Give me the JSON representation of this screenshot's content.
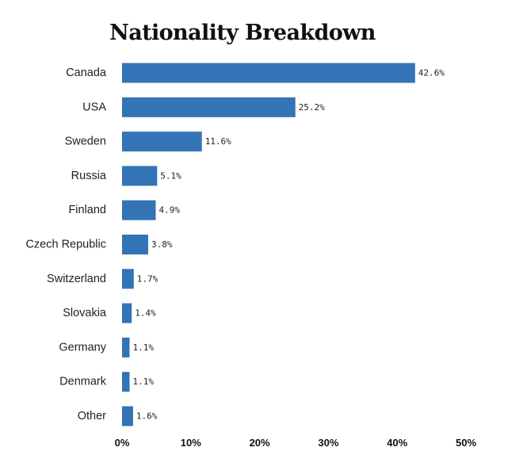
{
  "chart_data": {
    "type": "bar",
    "orientation": "horizontal",
    "title": "Nationality Breakdown",
    "xlabel": "",
    "ylabel": "",
    "xlim": [
      0,
      50
    ],
    "grid": false,
    "bar_color": "#3374b6",
    "categories": [
      "Canada",
      "USA",
      "Sweden",
      "Russia",
      "Finland",
      "Czech Republic",
      "Switzerland",
      "Slovakia",
      "Germany",
      "Denmark",
      "Other"
    ],
    "values": [
      42.6,
      25.2,
      11.6,
      5.1,
      4.9,
      3.8,
      1.7,
      1.4,
      1.1,
      1.1,
      1.6
    ],
    "data_labels": [
      "42.6%",
      "25.2%",
      "11.6%",
      "5.1%",
      "4.9%",
      "3.8%",
      "1.7%",
      "1.4%",
      "1.1%",
      "1.1%",
      "1.6%"
    ],
    "x_ticks": [
      0,
      10,
      20,
      30,
      40,
      50
    ],
    "x_tick_labels": [
      "0%",
      "10%",
      "20%",
      "30%",
      "40%",
      "50%"
    ]
  }
}
